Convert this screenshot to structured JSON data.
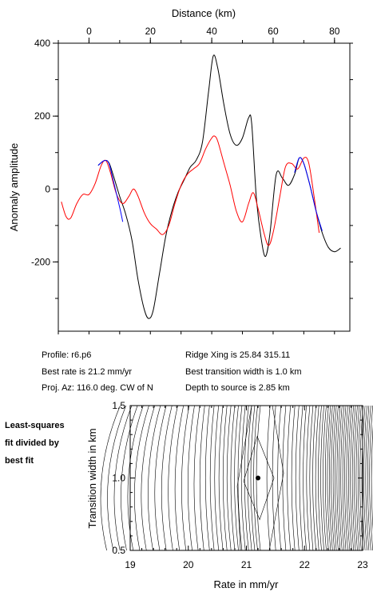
{
  "chart_data": [
    {
      "type": "line",
      "xlabel": "Distance (km)",
      "ylabel": "Anomaly amplitude",
      "xlim": [
        -10,
        85
      ],
      "ylim": [
        -390,
        400
      ],
      "x_ticks": [
        0,
        20,
        40,
        60,
        80
      ],
      "y_ticks": [
        400,
        200,
        0,
        -200
      ],
      "series": [
        {
          "color": "#000000",
          "points": [
            [
              3,
              65
            ],
            [
              5,
              78
            ],
            [
              6.5,
              72
            ],
            [
              8,
              35
            ],
            [
              10,
              -20
            ],
            [
              12,
              -70
            ],
            [
              14,
              -140
            ],
            [
              16,
              -250
            ],
            [
              18,
              -330
            ],
            [
              19.5,
              -355
            ],
            [
              21,
              -330
            ],
            [
              23,
              -230
            ],
            [
              25,
              -130
            ],
            [
              27,
              -60
            ],
            [
              29,
              -10
            ],
            [
              31,
              25
            ],
            [
              33,
              60
            ],
            [
              35,
              80
            ],
            [
              37,
              130
            ],
            [
              39,
              270
            ],
            [
              40.5,
              365
            ],
            [
              42,
              330
            ],
            [
              44,
              230
            ],
            [
              46,
              150
            ],
            [
              48,
              120
            ],
            [
              50,
              140
            ],
            [
              52,
              195
            ],
            [
              53,
              180
            ],
            [
              54.5,
              -20
            ],
            [
              56,
              -130
            ],
            [
              57.5,
              -185
            ],
            [
              59,
              -120
            ],
            [
              61,
              40
            ],
            [
              63,
              30
            ],
            [
              65,
              10
            ],
            [
              67,
              40
            ],
            [
              68.5,
              85
            ],
            [
              70,
              70
            ],
            [
              72,
              10
            ],
            [
              74,
              -60
            ],
            [
              76,
              -120
            ],
            [
              78,
              -160
            ],
            [
              80,
              -172
            ],
            [
              82,
              -162
            ]
          ]
        },
        {
          "color": "#ff0000",
          "points": [
            [
              -9,
              -35
            ],
            [
              -7.5,
              -75
            ],
            [
              -6,
              -80
            ],
            [
              -4,
              -40
            ],
            [
              -2,
              -15
            ],
            [
              0,
              -15
            ],
            [
              2,
              15
            ],
            [
              4,
              65
            ],
            [
              5.5,
              78
            ],
            [
              7,
              45
            ],
            [
              9,
              -15
            ],
            [
              11,
              -40
            ],
            [
              13,
              -20
            ],
            [
              14.5,
              0
            ],
            [
              16,
              -20
            ],
            [
              18,
              -65
            ],
            [
              20,
              -95
            ],
            [
              22,
              -110
            ],
            [
              24,
              -125
            ],
            [
              26,
              -100
            ],
            [
              28,
              -40
            ],
            [
              30,
              10
            ],
            [
              32,
              40
            ],
            [
              34,
              55
            ],
            [
              36,
              70
            ],
            [
              38,
              110
            ],
            [
              40,
              140
            ],
            [
              41,
              145
            ],
            [
              42,
              130
            ],
            [
              44,
              70
            ],
            [
              46,
              10
            ],
            [
              48,
              -60
            ],
            [
              50,
              -90
            ],
            [
              52,
              -40
            ],
            [
              53.5,
              -10
            ],
            [
              55,
              -50
            ],
            [
              57,
              -120
            ],
            [
              58.5,
              -155
            ],
            [
              60,
              -120
            ],
            [
              62,
              -30
            ],
            [
              64,
              60
            ],
            [
              66,
              70
            ],
            [
              68,
              55
            ],
            [
              70,
              85
            ],
            [
              71.5,
              75
            ],
            [
              73,
              0
            ],
            [
              75,
              -120
            ]
          ]
        },
        {
          "color": "#0000ff",
          "points": [
            [
              3,
              65
            ],
            [
              5,
              78
            ],
            [
              6.5,
              70
            ],
            [
              8,
              20
            ],
            [
              10,
              -50
            ],
            [
              11,
              -90
            ]
          ]
        },
        {
          "color": "#0000ff",
          "points": [
            [
              67,
              45
            ],
            [
              68.5,
              85
            ],
            [
              70,
              70
            ],
            [
              72,
              10
            ],
            [
              74,
              -60
            ],
            [
              76,
              -115
            ]
          ]
        }
      ]
    },
    {
      "type": "contour",
      "xlabel": "Rate in mm/yr",
      "ylabel": "Transition width in km",
      "xlim": [
        19,
        23
      ],
      "ylim": [
        0.5,
        1.5
      ],
      "x_ticks": [
        19,
        20,
        21,
        22,
        23
      ],
      "y_ticks": [
        0.5,
        1.0,
        1.5
      ],
      "best_fit": {
        "rate": 21.2,
        "width": 1.0
      }
    }
  ],
  "labels": {
    "profile": "Profile: r6.p6",
    "best_rate": "Best rate is 21.2 mm/yr",
    "proj_az": "Proj. Az: 116.0 deg. CW of N",
    "ridge_xing": "Ridge Xing is 25.84 315.11",
    "best_width": "Best transition width is 1.0 km",
    "depth": "Depth to source is   2.85 km",
    "side_note": [
      "Least-squares",
      "fit divided by",
      "best fit"
    ]
  }
}
